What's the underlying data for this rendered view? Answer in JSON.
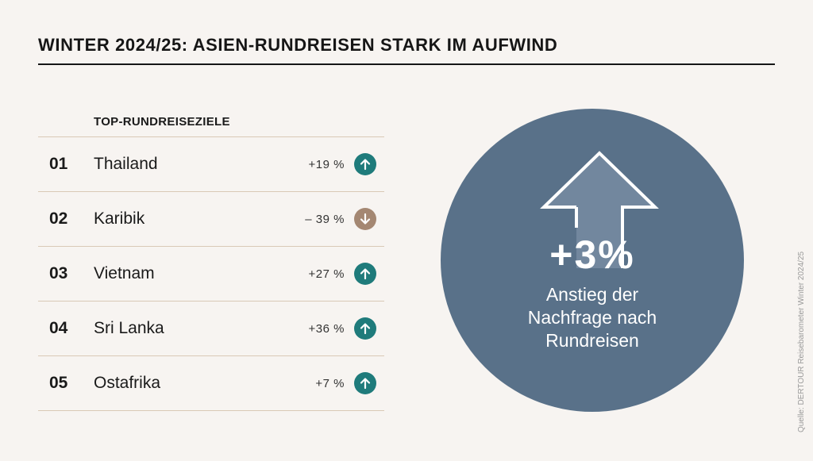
{
  "title": "WINTER 2024/25: ASIEN-RUNDREISEN STARK IM AUFWIND",
  "table": {
    "header": "TOP-RUNDREISEZIELE",
    "rows": [
      {
        "rank": "01",
        "destination": "Thailand",
        "change": "+19 %",
        "trend": "up-icon"
      },
      {
        "rank": "02",
        "destination": "Karibik",
        "change": "– 39 %",
        "trend": "down-icon"
      },
      {
        "rank": "03",
        "destination": "Vietnam",
        "change": "+27 %",
        "trend": "up-icon"
      },
      {
        "rank": "04",
        "destination": "Sri Lanka",
        "change": "+36 %",
        "trend": "up-icon"
      },
      {
        "rank": "05",
        "destination": "Ostafrika",
        "change": "+7 %",
        "trend": "up-icon"
      }
    ]
  },
  "highlight": {
    "value": "+3%",
    "label_lines": [
      "Anstieg der",
      "Nachfrage nach",
      "Rundreisen"
    ]
  },
  "source": "Quelle: DERTOUR Reisebarometer Winter 2024/25",
  "colors": {
    "background": "#f7f4f1",
    "up": "#1f7b7b",
    "down": "#a48772",
    "circle": "#597189",
    "arrow_fill": "#72879e",
    "divider": "#d9c9b6"
  }
}
